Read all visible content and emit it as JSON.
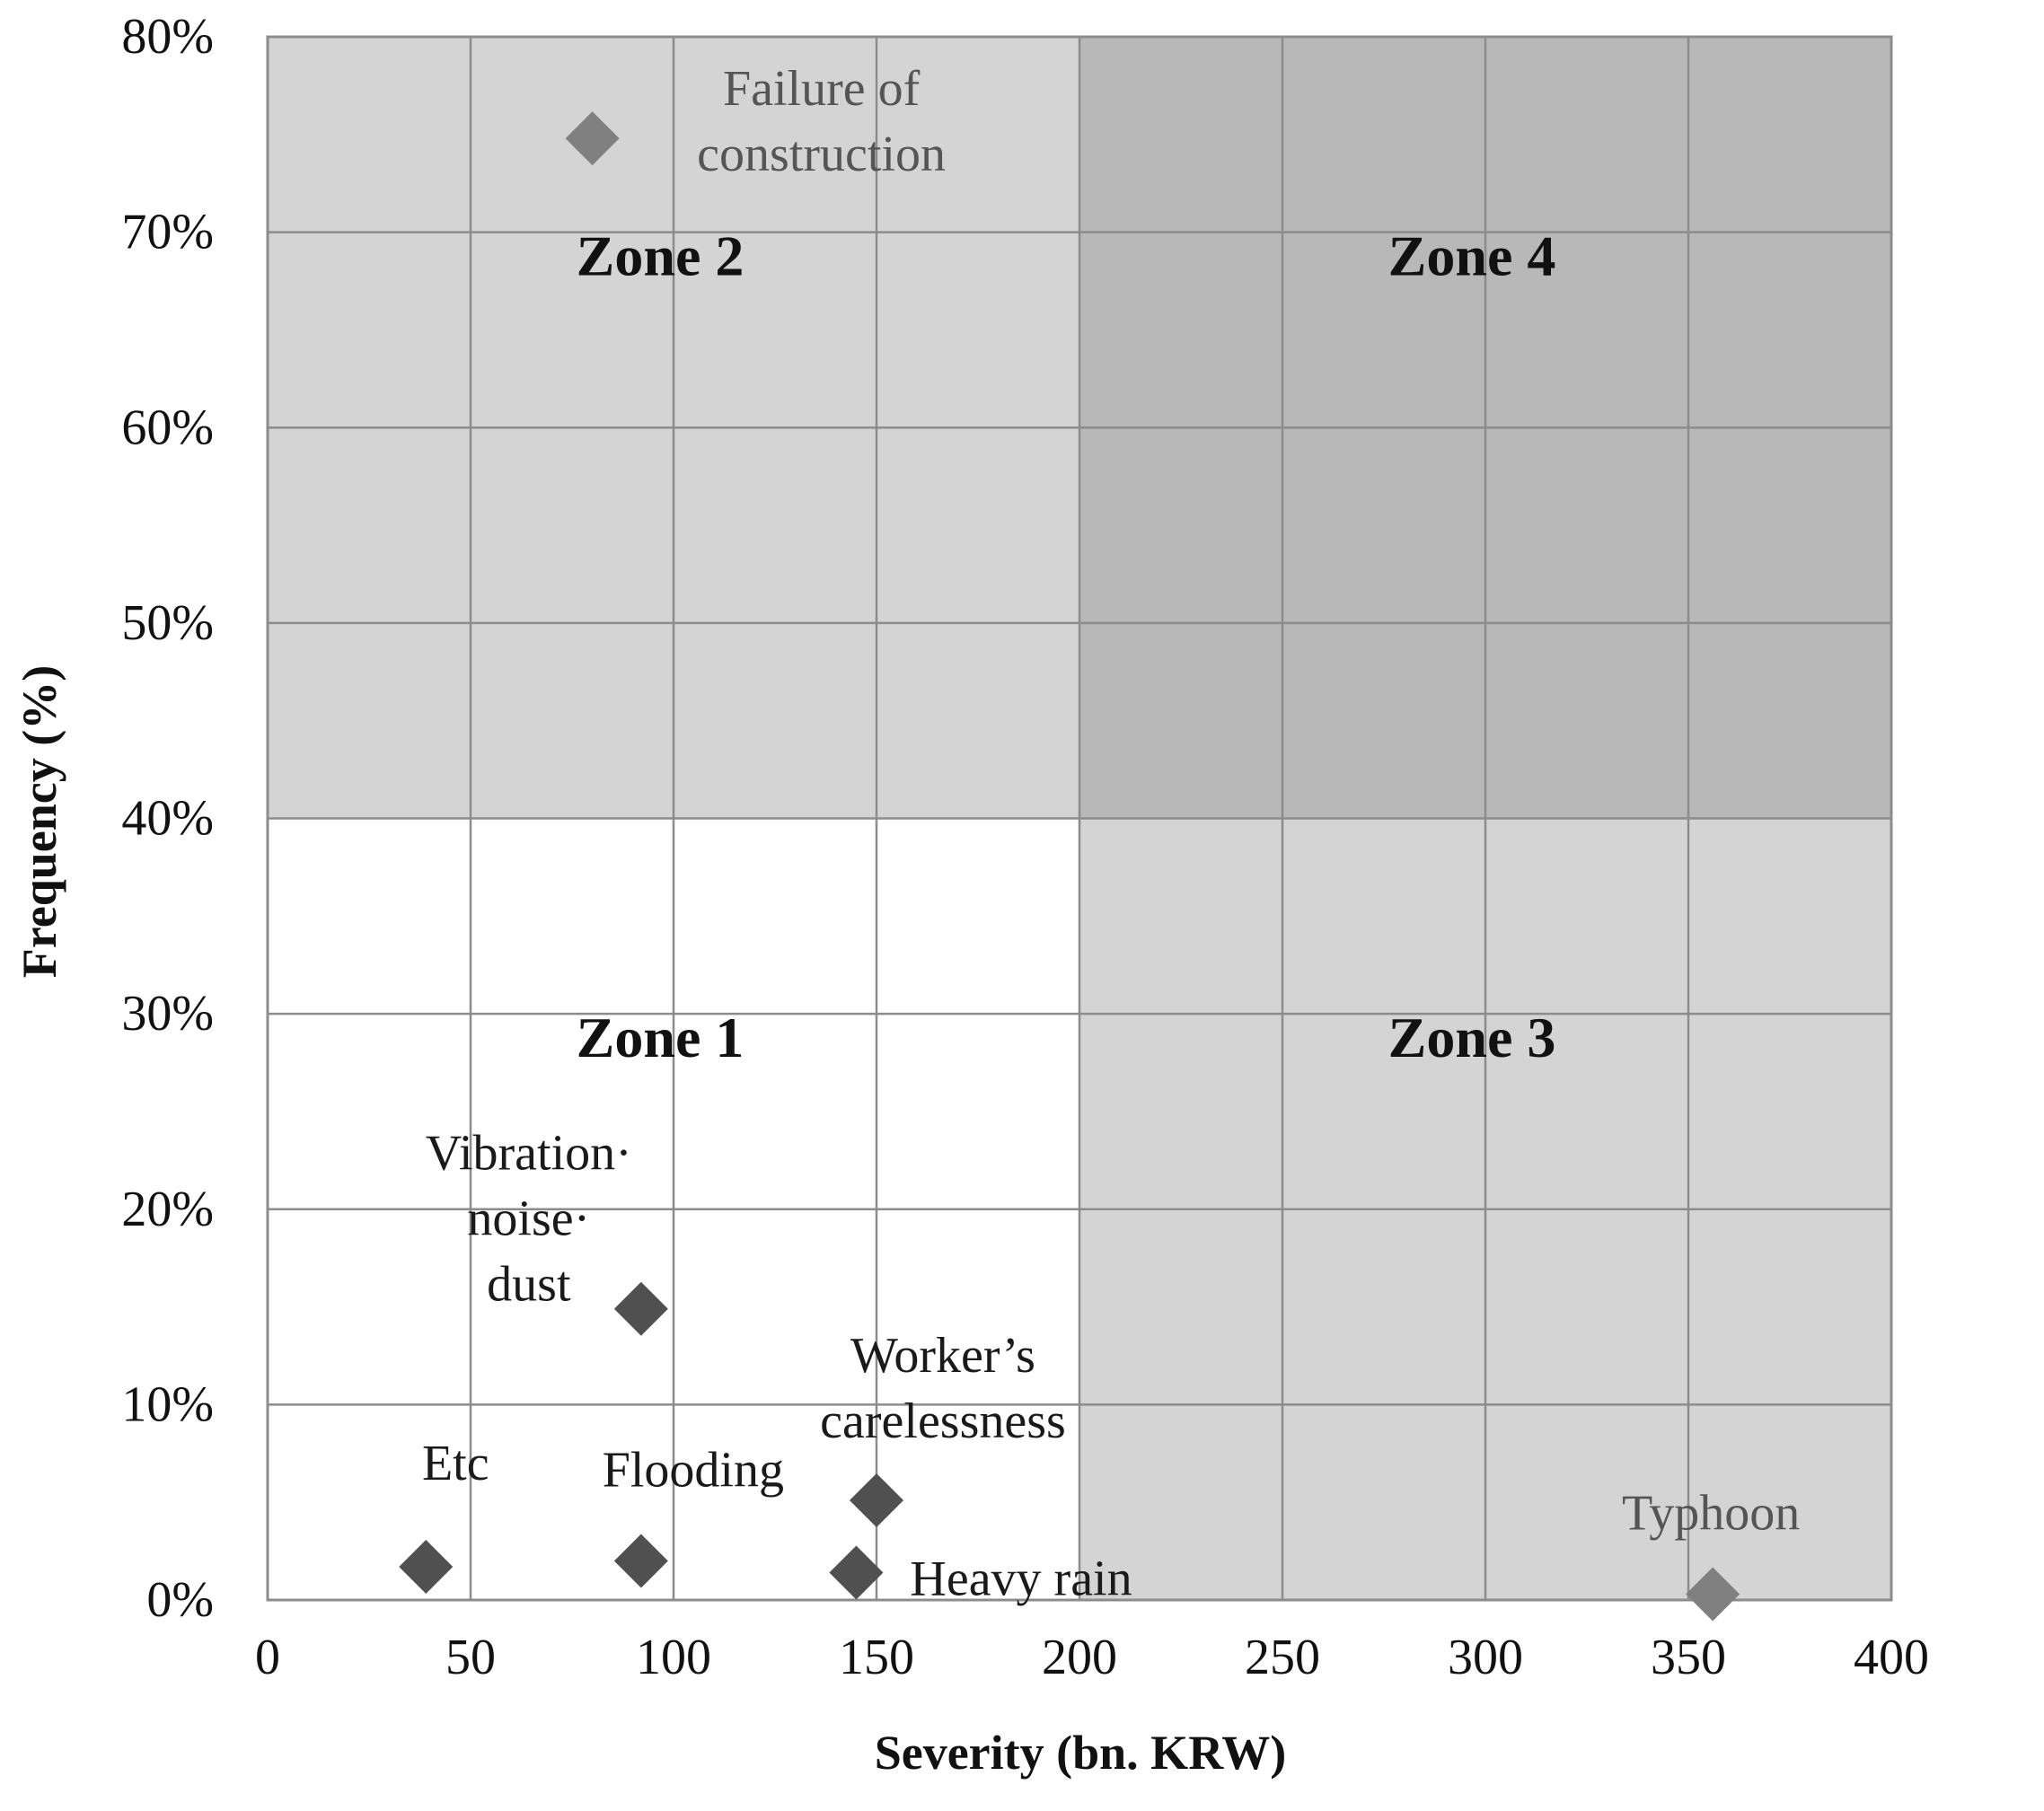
{
  "chart_data": {
    "type": "scatter",
    "title": "",
    "xlabel": "Severity (bn. KRW)",
    "ylabel": "Frequency (%)",
    "xlim": [
      0,
      400
    ],
    "ylim": [
      0,
      80
    ],
    "x_ticks": [
      "0",
      "50",
      "100",
      "150",
      "200",
      "250",
      "300",
      "350",
      "400"
    ],
    "y_ticks": [
      "0%",
      "10%",
      "20%",
      "30%",
      "40%",
      "50%",
      "60%",
      "70%",
      "80%"
    ],
    "grid": true,
    "zones": [
      {
        "label": "Zone 1",
        "x_range": [
          0,
          200
        ],
        "y_range": [
          0,
          40
        ],
        "color": "#ffffff"
      },
      {
        "label": "Zone 2",
        "x_range": [
          0,
          200
        ],
        "y_range": [
          40,
          80
        ],
        "color": "#d4d4d4"
      },
      {
        "label": "Zone 3",
        "x_range": [
          200,
          400
        ],
        "y_range": [
          0,
          40
        ],
        "color": "#d4d4d4"
      },
      {
        "label": "Zone 4",
        "x_range": [
          200,
          400
        ],
        "y_range": [
          40,
          80
        ],
        "color": "#b8b8b8"
      }
    ],
    "points": [
      {
        "label": [
          "Failure  of",
          "construction"
        ],
        "x": 80,
        "y": 74.8,
        "marker_color": "#808080",
        "label_shade": "light"
      },
      {
        "label": [
          "Vibration·",
          "noise·",
          "dust"
        ],
        "x": 92,
        "y": 14.9,
        "marker_color": "#505050",
        "label_shade": "dark"
      },
      {
        "label": [
          "Worker’s",
          "carelessness"
        ],
        "x": 150,
        "y": 5.1,
        "marker_color": "#505050",
        "label_shade": "dark"
      },
      {
        "label": [
          "Etc"
        ],
        "x": 39,
        "y": 1.7,
        "marker_color": "#505050",
        "label_shade": "dark"
      },
      {
        "label": [
          "Flooding"
        ],
        "x": 92,
        "y": 2.0,
        "marker_color": "#505050",
        "label_shade": "dark"
      },
      {
        "label": [
          "Heavy  rain"
        ],
        "x": 145,
        "y": 1.4,
        "marker_color": "#505050",
        "label_shade": "dark"
      },
      {
        "label": [
          "Typhoon"
        ],
        "x": 356,
        "y": 0.3,
        "marker_color": "#808080",
        "label_shade": "light"
      }
    ]
  }
}
